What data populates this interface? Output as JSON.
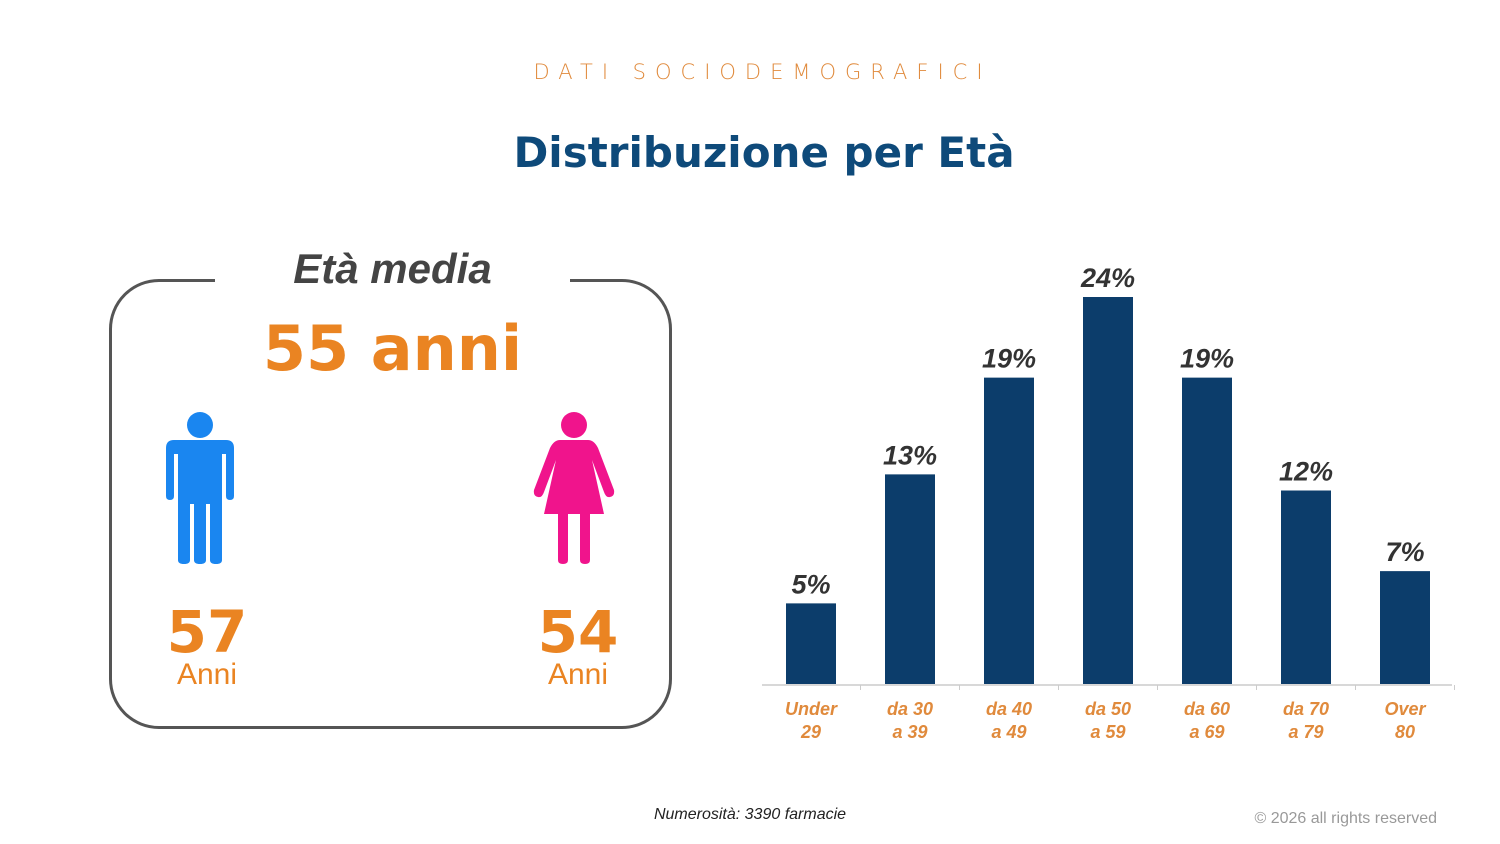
{
  "header": {
    "kicker": "DATI SOCIODEMOGRAFICI",
    "title": "Distribuzione per Età"
  },
  "average": {
    "label": "Età media",
    "value": "55 anni",
    "male": {
      "value": "57",
      "unit": "Anni",
      "icon": "male-person-icon",
      "color": "#1a86f0"
    },
    "female": {
      "value": "54",
      "unit": "Anni",
      "icon": "female-person-icon",
      "color": "#f0148c"
    }
  },
  "chart_data": {
    "type": "bar",
    "title": "",
    "xlabel": "",
    "ylabel": "",
    "ylim": [
      0,
      24
    ],
    "categories": [
      [
        "Under",
        "29"
      ],
      [
        "da 30",
        "a 39"
      ],
      [
        "da 40",
        "a 49"
      ],
      [
        "da 50",
        "a 59"
      ],
      [
        "da 60",
        "a 69"
      ],
      [
        "da 70",
        "a 79"
      ],
      [
        "Over",
        "80"
      ]
    ],
    "values": [
      5,
      13,
      19,
      24,
      19,
      12,
      7
    ],
    "labels": [
      "5%",
      "13%",
      "19%",
      "24%",
      "19%",
      "12%",
      "7%"
    ],
    "bar_color": "#0c3d6b",
    "label_color": "#e08a3c",
    "grid": false
  },
  "footer": {
    "note": "Numerosità: 3390 farmacie",
    "copyright": "© 2026 all rights reserved"
  }
}
